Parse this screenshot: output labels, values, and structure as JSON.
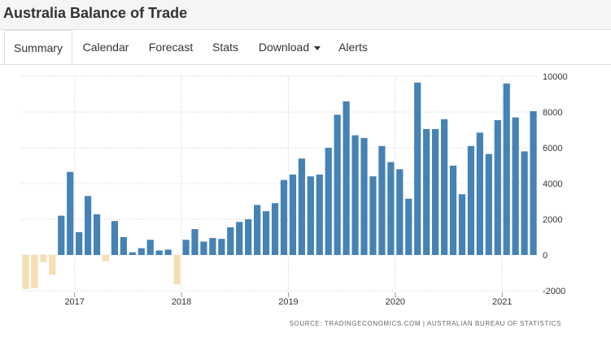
{
  "page": {
    "title": "Australia Balance of Trade",
    "tabs": [
      {
        "label": "Summary",
        "active": true
      },
      {
        "label": "Calendar"
      },
      {
        "label": "Forecast"
      },
      {
        "label": "Stats"
      },
      {
        "label": "Download",
        "dropdown": true
      },
      {
        "label": "Alerts"
      }
    ],
    "source": "SOURCE: TRADINGECONOMICS.COM | AUSTRALIAN BUREAU OF STATISTICS"
  },
  "chart_data": {
    "type": "bar",
    "title": "",
    "xlabel": "",
    "ylabel": "",
    "ylim": [
      -2000,
      10000
    ],
    "yticks": [
      -2000,
      0,
      2000,
      4000,
      6000,
      8000,
      10000
    ],
    "xticks": [
      "2017",
      "2018",
      "2019",
      "2020",
      "2021"
    ],
    "x_start": "2016-07",
    "x_end": "2021-04",
    "grid": true,
    "y_axis_position": "right",
    "colors": {
      "positive": "#4682b4",
      "negative": "#f5deb3"
    },
    "categories": [
      "2016-07",
      "2016-08",
      "2016-09",
      "2016-10",
      "2016-11",
      "2016-12",
      "2017-01",
      "2017-02",
      "2017-03",
      "2017-04",
      "2017-05",
      "2017-06",
      "2017-07",
      "2017-08",
      "2017-09",
      "2017-10",
      "2017-11",
      "2017-12",
      "2018-01",
      "2018-02",
      "2018-03",
      "2018-04",
      "2018-05",
      "2018-06",
      "2018-07",
      "2018-08",
      "2018-09",
      "2018-10",
      "2018-11",
      "2018-12",
      "2019-01",
      "2019-02",
      "2019-03",
      "2019-04",
      "2019-05",
      "2019-06",
      "2019-07",
      "2019-08",
      "2019-09",
      "2019-10",
      "2019-11",
      "2019-12",
      "2020-01",
      "2020-02",
      "2020-03",
      "2020-04",
      "2020-05",
      "2020-06",
      "2020-07",
      "2020-08",
      "2020-09",
      "2020-10",
      "2020-11",
      "2020-12",
      "2021-01",
      "2021-02",
      "2021-03",
      "2021-04"
    ],
    "values": [
      -1900,
      -1850,
      -400,
      -1100,
      2200,
      4650,
      1280,
      3300,
      2280,
      -350,
      1900,
      1000,
      150,
      380,
      850,
      250,
      300,
      -1650,
      850,
      1450,
      750,
      950,
      900,
      1550,
      1850,
      2000,
      2800,
      2450,
      2900,
      4200,
      4500,
      5400,
      4400,
      4500,
      6000,
      7850,
      8600,
      6700,
      6550,
      4400,
      6100,
      5200,
      4800,
      3150,
      9650,
      7050,
      7050,
      7600,
      5000,
      3400,
      6100,
      6850,
      5650,
      7550,
      9600,
      7700,
      5800,
      8050
    ]
  }
}
